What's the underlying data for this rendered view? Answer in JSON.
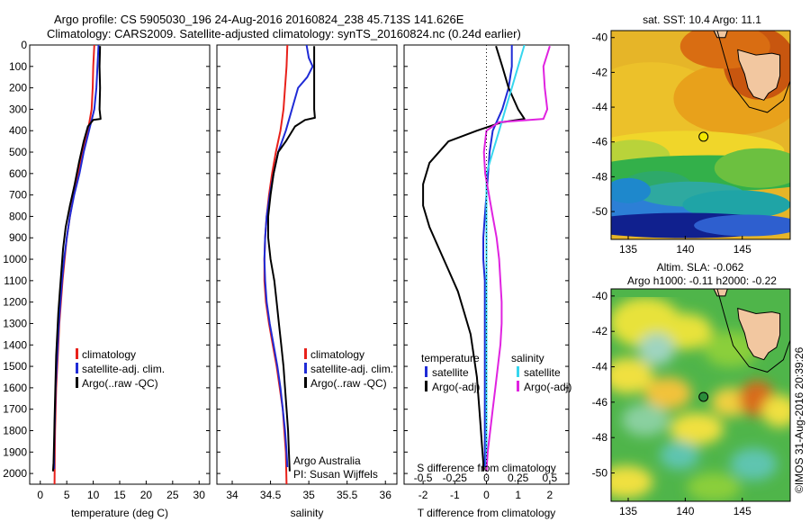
{
  "title": {
    "line1": "Argo profile: CS 5905030_196 24-Aug-2016 20160824_238 45.713S 141.626E",
    "line2": "Climatology: CARS2009. Satellite-adjusted climatology: synTS_20160824.nc (0.24d earlier)"
  },
  "side_credit": "©IMOS 31-Aug-2016 20:39:26",
  "colors": {
    "climatology": "#e8211b",
    "satellite": "#1f2bd6",
    "argo": "#000000",
    "salinity_satellite": "#36d6ee",
    "salinity_argo": "#e023e0"
  },
  "chart_data": [
    {
      "type": "line",
      "name": "temperature-profile",
      "xlabel": "temperature (deg C)",
      "xticks": [
        "0",
        "5",
        "10",
        "15",
        "20",
        "25",
        "30"
      ],
      "xlim": [
        -2,
        32
      ],
      "ylim": [
        2050,
        0
      ],
      "yticks": [
        "0",
        "100",
        "200",
        "300",
        "400",
        "500",
        "600",
        "700",
        "800",
        "900",
        "1000",
        "1100",
        "1200",
        "1300",
        "1400",
        "1500",
        "1600",
        "1700",
        "1800",
        "1900",
        "2000"
      ],
      "legend": [
        "climatology",
        "satellite-adj. clim.",
        "Argo(..raw -QC)"
      ],
      "series": [
        {
          "name": "climatology",
          "values": [
            [
              10.2,
              0
            ],
            [
              10.0,
              100
            ],
            [
              9.9,
              200
            ],
            [
              9.7,
              300
            ],
            [
              9.0,
              400
            ],
            [
              8.0,
              500
            ],
            [
              7.2,
              600
            ],
            [
              6.3,
              700
            ],
            [
              5.6,
              800
            ],
            [
              5.0,
              900
            ],
            [
              4.6,
              1000
            ],
            [
              4.2,
              1100
            ],
            [
              3.9,
              1200
            ],
            [
              3.6,
              1300
            ],
            [
              3.4,
              1400
            ],
            [
              3.2,
              1500
            ],
            [
              3.0,
              1600
            ],
            [
              2.9,
              1700
            ],
            [
              2.8,
              1800
            ],
            [
              2.75,
              1900
            ],
            [
              2.7,
              2050
            ]
          ]
        },
        {
          "name": "satellite-adj. clim.",
          "values": [
            [
              11.0,
              0
            ],
            [
              10.8,
              100
            ],
            [
              10.6,
              200
            ],
            [
              10.2,
              300
            ],
            [
              9.2,
              400
            ],
            [
              8.2,
              500
            ],
            [
              7.4,
              600
            ],
            [
              6.4,
              700
            ],
            [
              5.6,
              800
            ],
            [
              5.0,
              900
            ],
            [
              4.5,
              1000
            ],
            [
              4.1,
              1100
            ],
            [
              3.8,
              1200
            ],
            [
              3.5,
              1300
            ],
            [
              3.3,
              1400
            ],
            [
              3.1,
              1500
            ],
            [
              2.9,
              1600
            ],
            [
              2.8,
              1700
            ],
            [
              2.7,
              1800
            ],
            [
              2.6,
              1900
            ],
            [
              2.6,
              1980
            ]
          ]
        },
        {
          "name": "Argo(..raw -QC)",
          "values": [
            [
              11.3,
              5
            ],
            [
              11.2,
              100
            ],
            [
              11.3,
              200
            ],
            [
              11.2,
              300
            ],
            [
              11.4,
              345
            ],
            [
              10.0,
              350
            ],
            [
              9.0,
              380
            ],
            [
              8.2,
              450
            ],
            [
              7.3,
              550
            ],
            [
              6.5,
              650
            ],
            [
              5.6,
              750
            ],
            [
              4.8,
              850
            ],
            [
              4.3,
              950
            ],
            [
              4.0,
              1050
            ],
            [
              3.7,
              1150
            ],
            [
              3.4,
              1250
            ],
            [
              3.2,
              1350
            ],
            [
              3.0,
              1450
            ],
            [
              2.9,
              1550
            ],
            [
              2.8,
              1650
            ],
            [
              2.7,
              1750
            ],
            [
              2.6,
              1850
            ],
            [
              2.5,
              1950
            ],
            [
              2.4,
              1990
            ]
          ]
        }
      ]
    },
    {
      "type": "line",
      "name": "salinity-profile",
      "xlabel": "salinity",
      "xticks": [
        "34",
        "34.5",
        "35",
        "35.5",
        "36"
      ],
      "xlim": [
        33.8,
        36.15
      ],
      "ylim": [
        2050,
        0
      ],
      "legend": [
        "climatology",
        "satellite-adj. clim.",
        "Argo(..raw -QC)"
      ],
      "annotation": [
        "Argo Australia",
        "PI: Susan Wijffels"
      ],
      "series": [
        {
          "name": "climatology",
          "values": [
            [
              34.72,
              0
            ],
            [
              34.71,
              100
            ],
            [
              34.69,
              200
            ],
            [
              34.67,
              300
            ],
            [
              34.63,
              400
            ],
            [
              34.57,
              500
            ],
            [
              34.52,
              600
            ],
            [
              34.48,
              700
            ],
            [
              34.45,
              800
            ],
            [
              34.43,
              900
            ],
            [
              34.42,
              1000
            ],
            [
              34.42,
              1100
            ],
            [
              34.44,
              1200
            ],
            [
              34.48,
              1300
            ],
            [
              34.53,
              1400
            ],
            [
              34.58,
              1500
            ],
            [
              34.62,
              1600
            ],
            [
              34.66,
              1700
            ],
            [
              34.68,
              1800
            ],
            [
              34.7,
              1900
            ],
            [
              34.71,
              2050
            ]
          ]
        },
        {
          "name": "satellite-adj. clim.",
          "values": [
            [
              34.97,
              0
            ],
            [
              35.0,
              60
            ],
            [
              35.05,
              100
            ],
            [
              34.98,
              150
            ],
            [
              34.86,
              200
            ],
            [
              34.78,
              300
            ],
            [
              34.7,
              400
            ],
            [
              34.6,
              500
            ],
            [
              34.54,
              600
            ],
            [
              34.49,
              700
            ],
            [
              34.45,
              800
            ],
            [
              34.43,
              900
            ],
            [
              34.42,
              1000
            ],
            [
              34.43,
              1100
            ],
            [
              34.45,
              1200
            ],
            [
              34.49,
              1300
            ],
            [
              34.54,
              1400
            ],
            [
              34.59,
              1500
            ],
            [
              34.63,
              1600
            ],
            [
              34.66,
              1700
            ],
            [
              34.69,
              1800
            ],
            [
              34.71,
              1900
            ],
            [
              34.72,
              1970
            ]
          ]
        },
        {
          "name": "Argo(..raw -QC)",
          "values": [
            [
              35.07,
              5
            ],
            [
              35.07,
              100
            ],
            [
              35.07,
              200
            ],
            [
              35.07,
              300
            ],
            [
              35.08,
              340
            ],
            [
              34.95,
              350
            ],
            [
              34.82,
              380
            ],
            [
              34.7,
              450
            ],
            [
              34.6,
              500
            ],
            [
              34.54,
              600
            ],
            [
              34.5,
              700
            ],
            [
              34.47,
              800
            ],
            [
              34.47,
              900
            ],
            [
              34.5,
              1000
            ],
            [
              34.55,
              1100
            ],
            [
              34.58,
              1200
            ],
            [
              34.61,
              1300
            ],
            [
              34.64,
              1400
            ],
            [
              34.67,
              1500
            ],
            [
              34.69,
              1600
            ],
            [
              34.71,
              1700
            ],
            [
              34.73,
              1800
            ],
            [
              34.74,
              1900
            ],
            [
              34.75,
              1990
            ]
          ]
        }
      ]
    },
    {
      "type": "line",
      "name": "difference-profile",
      "xlabel": "T difference from climatology",
      "x2label": "S difference from climatology",
      "xticks": [
        "-2",
        "-1",
        "0",
        "1",
        "2"
      ],
      "x2ticks": [
        "-0.5",
        "-0.25",
        "0",
        "0.25",
        "0.5"
      ],
      "xlim": [
        -2.6,
        2.6
      ],
      "ylim": [
        2050,
        0
      ],
      "legend_left_title": "temperature",
      "legend_right_title": "salinity",
      "legend": [
        "satellite",
        "Argo(-adj)",
        "satellite",
        "Argo(-adj)"
      ],
      "series": [
        {
          "name": "temperature satellite",
          "values": [
            [
              0.8,
              0
            ],
            [
              0.8,
              100
            ],
            [
              0.7,
              200
            ],
            [
              0.5,
              300
            ],
            [
              0.2,
              400
            ],
            [
              0.1,
              500
            ],
            [
              0.05,
              600
            ],
            [
              0.0,
              700
            ],
            [
              -0.05,
              800
            ],
            [
              -0.1,
              900
            ],
            [
              -0.1,
              1000
            ],
            [
              -0.05,
              1100
            ],
            [
              -0.05,
              1200
            ],
            [
              -0.05,
              1300
            ],
            [
              -0.05,
              1400
            ],
            [
              -0.05,
              1500
            ],
            [
              -0.05,
              1600
            ],
            [
              -0.05,
              1700
            ],
            [
              -0.05,
              1800
            ],
            [
              -0.05,
              1900
            ],
            [
              -0.05,
              1970
            ]
          ]
        },
        {
          "name": "temperature Argo(-adj)",
          "values": [
            [
              0.3,
              5
            ],
            [
              0.5,
              100
            ],
            [
              0.7,
              200
            ],
            [
              1.0,
              300
            ],
            [
              1.2,
              345
            ],
            [
              0.5,
              360
            ],
            [
              -0.3,
              400
            ],
            [
              -1.2,
              450
            ],
            [
              -1.8,
              550
            ],
            [
              -2.0,
              650
            ],
            [
              -2.0,
              750
            ],
            [
              -1.8,
              850
            ],
            [
              -1.5,
              950
            ],
            [
              -1.2,
              1050
            ],
            [
              -0.9,
              1150
            ],
            [
              -0.7,
              1250
            ],
            [
              -0.5,
              1350
            ],
            [
              -0.4,
              1450
            ],
            [
              -0.3,
              1550
            ],
            [
              -0.25,
              1650
            ],
            [
              -0.2,
              1750
            ],
            [
              -0.15,
              1850
            ],
            [
              -0.1,
              1950
            ],
            [
              -0.1,
              1990
            ]
          ]
        },
        {
          "name": "salinity satellite",
          "values": [
            [
              0.3,
              0
            ],
            [
              0.25,
              100
            ],
            [
              0.2,
              200
            ],
            [
              0.15,
              300
            ],
            [
              0.1,
              400
            ],
            [
              0.05,
              500
            ],
            [
              0.0,
              600
            ],
            [
              0.0,
              700
            ],
            [
              0.0,
              800
            ],
            [
              0.0,
              900
            ],
            [
              0.0,
              1000
            ],
            [
              0.0,
              1100
            ],
            [
              0.0,
              1200
            ],
            [
              0.0,
              1300
            ],
            [
              0.0,
              1400
            ],
            [
              0.0,
              1500
            ],
            [
              0.0,
              1600
            ],
            [
              0.0,
              1700
            ],
            [
              0.0,
              1800
            ],
            [
              0.0,
              1900
            ],
            [
              0.0,
              1970
            ]
          ]
        },
        {
          "name": "salinity Argo(-adj)",
          "values": [
            [
              0.5,
              5
            ],
            [
              0.45,
              100
            ],
            [
              0.46,
              200
            ],
            [
              0.48,
              300
            ],
            [
              0.45,
              345
            ],
            [
              0.1,
              360
            ],
            [
              0.0,
              400
            ],
            [
              -0.02,
              500
            ],
            [
              -0.01,
              600
            ],
            [
              0.02,
              700
            ],
            [
              0.05,
              800
            ],
            [
              0.08,
              900
            ],
            [
              0.1,
              1000
            ],
            [
              0.11,
              1100
            ],
            [
              0.12,
              1200
            ],
            [
              0.12,
              1300
            ],
            [
              0.11,
              1400
            ],
            [
              0.09,
              1500
            ],
            [
              0.07,
              1600
            ],
            [
              0.05,
              1700
            ],
            [
              0.03,
              1800
            ],
            [
              0.01,
              1900
            ],
            [
              0.0,
              1990
            ]
          ]
        }
      ]
    },
    {
      "type": "heatmap",
      "name": "sst-map",
      "title": "sat. SST: 10.4 Argo: 11.1",
      "xticks": [
        "135",
        "140",
        "145"
      ],
      "yticks": [
        "-40",
        "-42",
        "-44",
        "-46",
        "-48",
        "-50"
      ],
      "xlim": [
        133.5,
        149.2
      ],
      "ylim": [
        -51.6,
        -39.6
      ],
      "marker": [
        141.6,
        -45.7
      ]
    },
    {
      "type": "heatmap",
      "name": "sla-map",
      "title_line1": "Altim. SLA: -0.062",
      "title_line2": "Argo h1000: -0.11 h2000: -0.22",
      "xticks": [
        "135",
        "140",
        "145"
      ],
      "yticks": [
        "-40",
        "-42",
        "-44",
        "-46",
        "-48",
        "-50"
      ],
      "xlim": [
        133.5,
        149.2
      ],
      "ylim": [
        -51.6,
        -39.6
      ],
      "marker": [
        141.6,
        -45.7
      ]
    }
  ]
}
